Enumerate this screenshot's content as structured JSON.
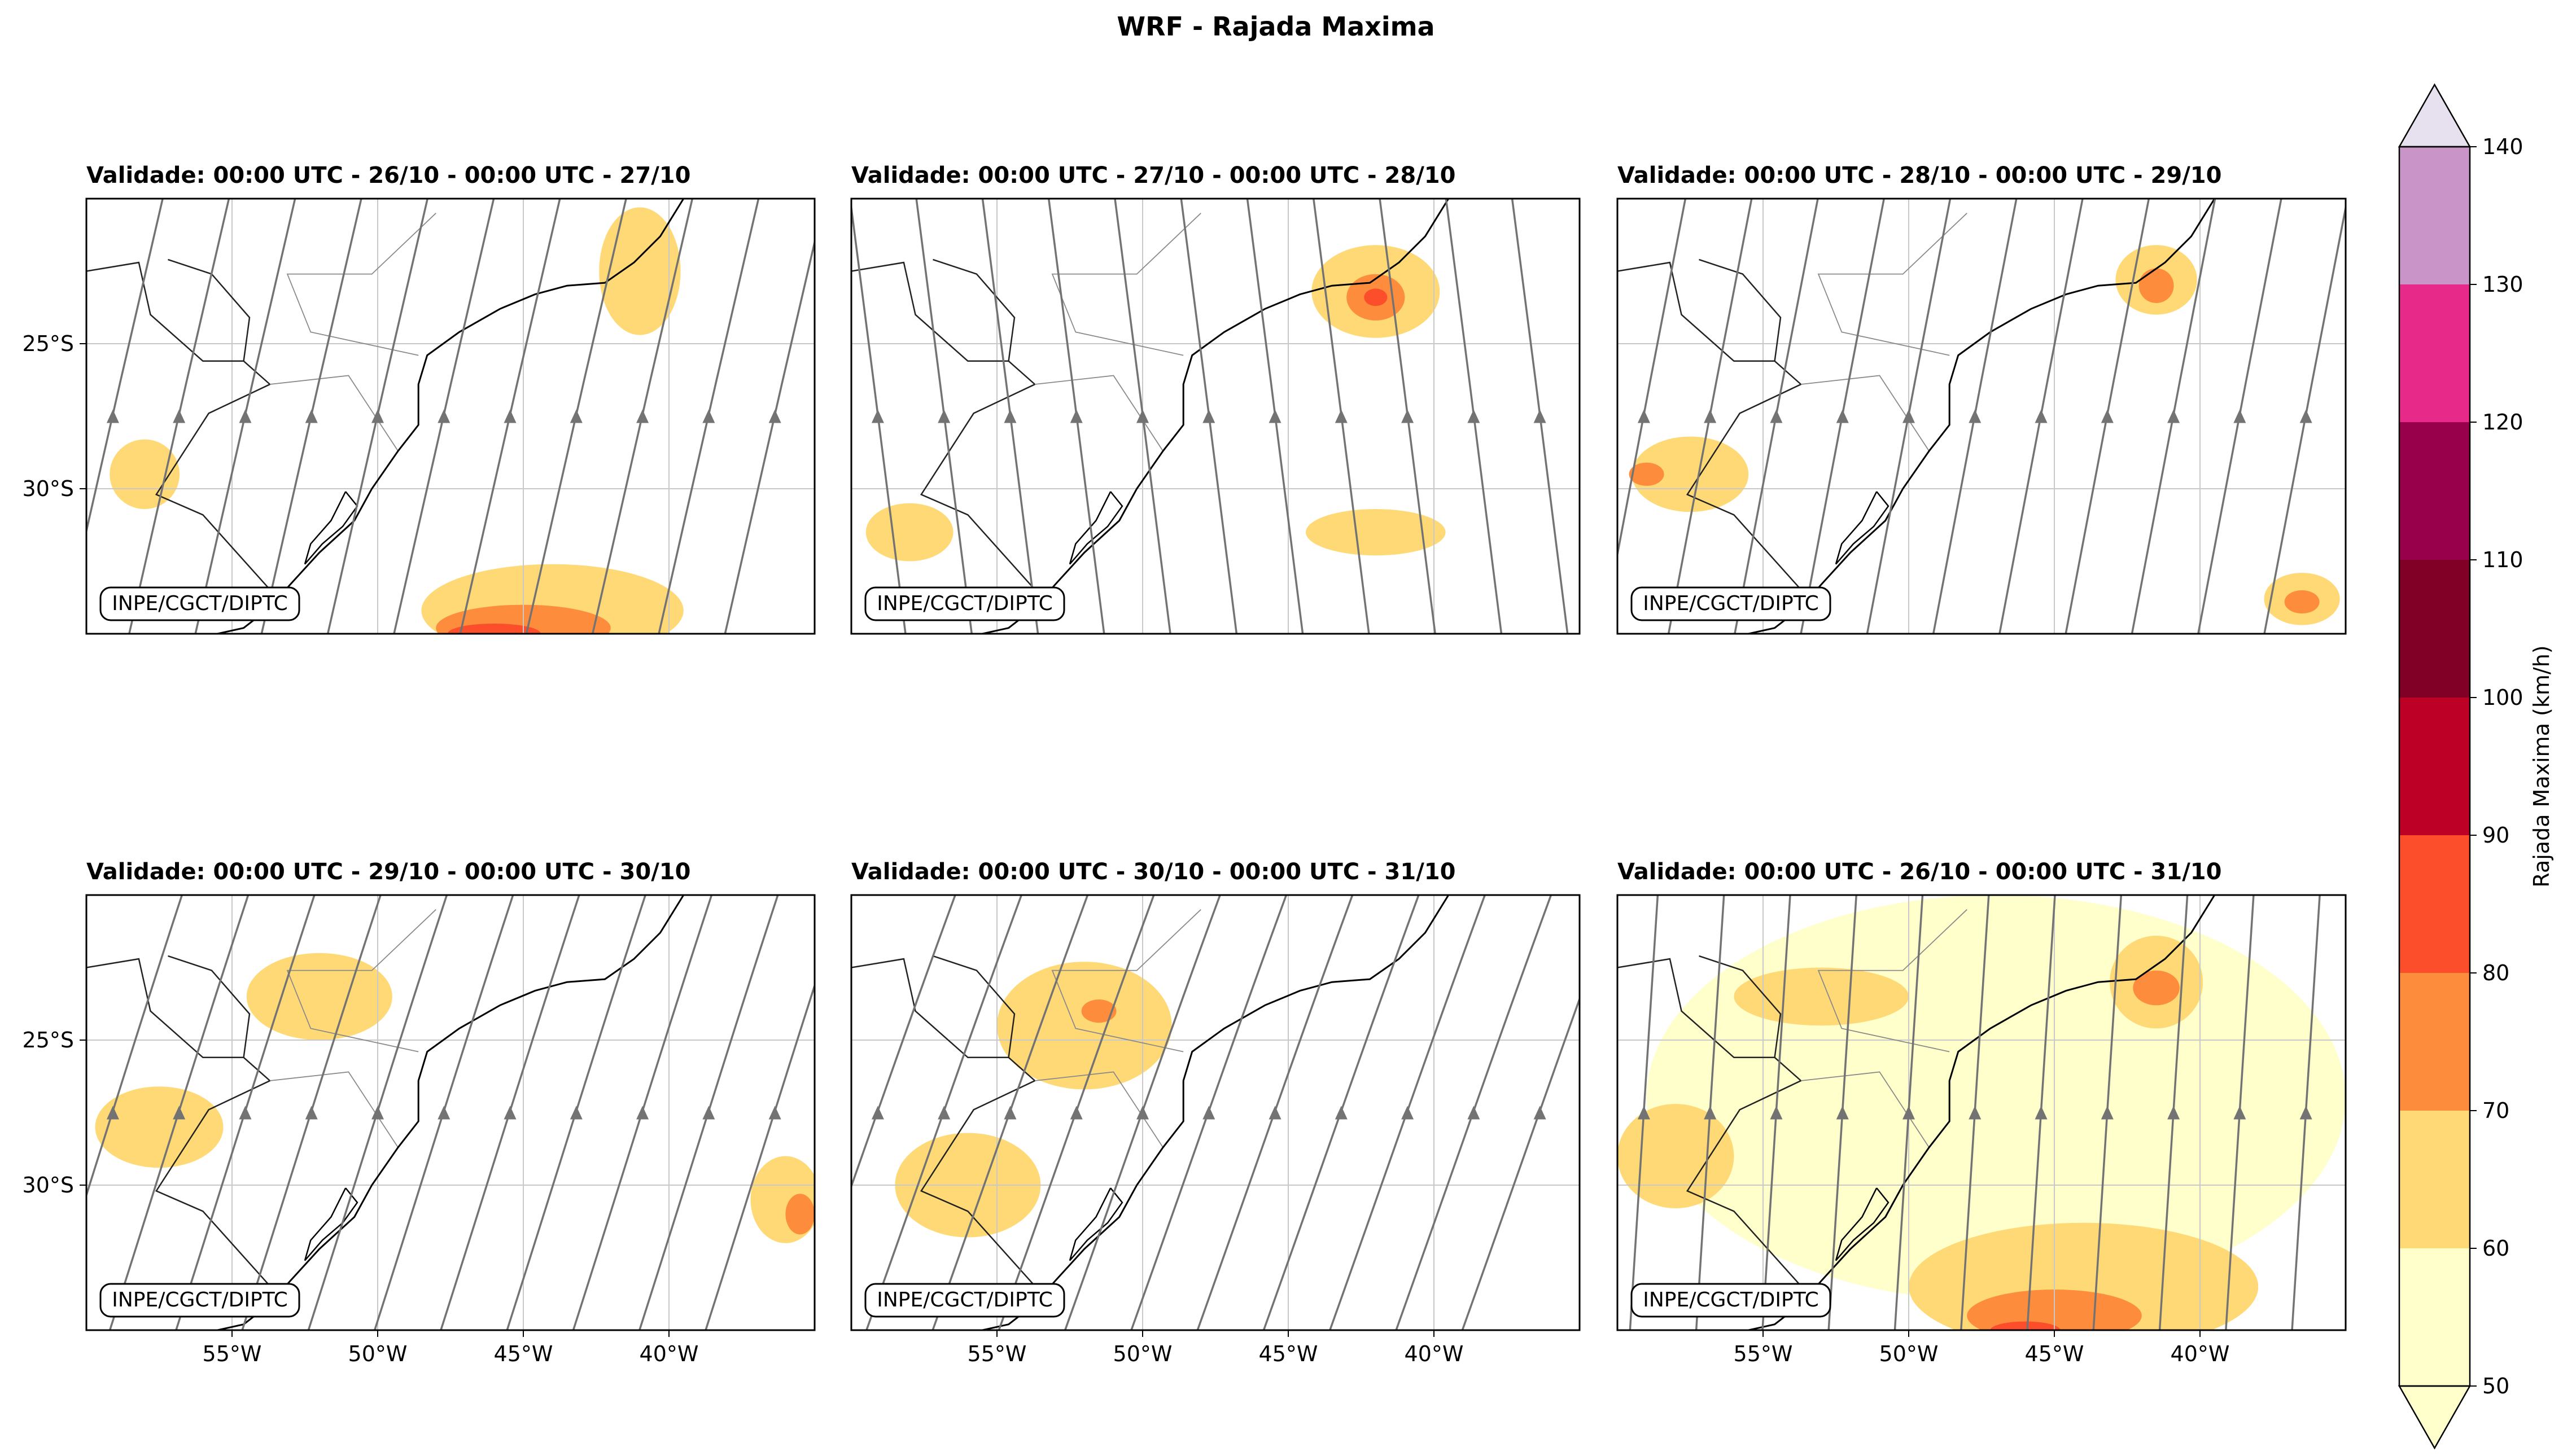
{
  "figure": {
    "title": "WRF - Rajada Maxima",
    "credit_label": "INPE/CGCT/DIPTC"
  },
  "panels": [
    {
      "title": "Validade: 00:00 UTC - 26/10 - 00:00 UTC - 27/10"
    },
    {
      "title": "Validade: 00:00 UTC - 27/10 - 00:00 UTC - 28/10"
    },
    {
      "title": "Validade: 00:00 UTC - 28/10 - 00:00 UTC - 29/10"
    },
    {
      "title": "Validade: 00:00 UTC - 29/10 - 00:00 UTC - 30/10"
    },
    {
      "title": "Validade: 00:00 UTC - 30/10 - 00:00 UTC - 31/10"
    },
    {
      "title": "Validade: 00:00 UTC - 26/10 - 00:00 UTC - 31/10"
    }
  ],
  "chart_data": {
    "type": "heatmap",
    "title": "WRF - Rajada Maxima",
    "map_extent": {
      "lon": [
        -60,
        -35
      ],
      "lat": [
        -35,
        -20
      ]
    },
    "lat_ticks": [
      "25°S",
      "30°S"
    ],
    "lat_tick_values": [
      -25,
      -30
    ],
    "lon_ticks": [
      "55°W",
      "50°W",
      "45°W",
      "40°W"
    ],
    "lon_tick_values": [
      -55,
      -50,
      -45,
      -40
    ],
    "grid": true,
    "overlay": "streamlines",
    "colorbar": {
      "label": "Rajada Maxima (km/h)",
      "levels": [
        50,
        60,
        70,
        80,
        90,
        100,
        110,
        120,
        130,
        140
      ],
      "tick_labels": [
        "50",
        "60",
        "70",
        "80",
        "90",
        "100",
        "110",
        "120",
        "130",
        "140"
      ],
      "colors": [
        "#ffffcc",
        "#fed976",
        "#fd8d3c",
        "#fc4e2a",
        "#bd0026",
        "#800026",
        "#99004c",
        "#e7298a",
        "#c994c7",
        "#e7e1ef"
      ],
      "extend": "both"
    },
    "fields": [
      {
        "panel": 1,
        "areas": [
          {
            "lon": -44,
            "lat": -34.2,
            "rx": 4.5,
            "ry": 1.6,
            "level": 60
          },
          {
            "lon": -45,
            "lat": -34.8,
            "rx": 3.0,
            "ry": 0.8,
            "level": 70
          },
          {
            "lon": -46,
            "lat": -35.0,
            "rx": 1.6,
            "ry": 0.35,
            "level": 80
          },
          {
            "lon": -41,
            "lat": -22.5,
            "rx": 1.4,
            "ry": 2.2,
            "level": 60
          },
          {
            "lon": -58,
            "lat": -29.5,
            "rx": 1.2,
            "ry": 1.2,
            "level": 60
          }
        ]
      },
      {
        "panel": 2,
        "areas": [
          {
            "lon": -42,
            "lat": -23.2,
            "rx": 2.2,
            "ry": 1.6,
            "level": 60
          },
          {
            "lon": -42,
            "lat": -23.4,
            "rx": 1.0,
            "ry": 0.8,
            "level": 70
          },
          {
            "lon": -42,
            "lat": -23.4,
            "rx": 0.4,
            "ry": 0.3,
            "level": 80
          },
          {
            "lon": -42,
            "lat": -31.5,
            "rx": 2.4,
            "ry": 0.8,
            "level": 60
          },
          {
            "lon": -58,
            "lat": -31.5,
            "rx": 1.5,
            "ry": 1.0,
            "level": 60
          }
        ]
      },
      {
        "panel": 3,
        "areas": [
          {
            "lon": -41.5,
            "lat": -22.8,
            "rx": 1.4,
            "ry": 1.2,
            "level": 60
          },
          {
            "lon": -41.5,
            "lat": -23.0,
            "rx": 0.6,
            "ry": 0.6,
            "level": 70
          },
          {
            "lon": -57.5,
            "lat": -29.5,
            "rx": 2.0,
            "ry": 1.3,
            "level": 60
          },
          {
            "lon": -59,
            "lat": -29.5,
            "rx": 0.6,
            "ry": 0.4,
            "level": 70
          },
          {
            "lon": -36.5,
            "lat": -33.8,
            "rx": 1.3,
            "ry": 0.9,
            "level": 60
          },
          {
            "lon": -36.5,
            "lat": -33.9,
            "rx": 0.6,
            "ry": 0.4,
            "level": 70
          }
        ]
      },
      {
        "panel": 4,
        "areas": [
          {
            "lon": -52,
            "lat": -23.5,
            "rx": 2.5,
            "ry": 1.5,
            "level": 60
          },
          {
            "lon": -57.5,
            "lat": -28.0,
            "rx": 2.2,
            "ry": 1.4,
            "level": 60
          },
          {
            "lon": -36,
            "lat": -30.5,
            "rx": 1.2,
            "ry": 1.5,
            "level": 60
          },
          {
            "lon": -35.5,
            "lat": -31.0,
            "rx": 0.5,
            "ry": 0.7,
            "level": 70
          }
        ]
      },
      {
        "panel": 5,
        "areas": [
          {
            "lon": -52,
            "lat": -24.5,
            "rx": 3.0,
            "ry": 2.2,
            "level": 60
          },
          {
            "lon": -51.5,
            "lat": -24.0,
            "rx": 0.6,
            "ry": 0.4,
            "level": 70
          },
          {
            "lon": -56,
            "lat": -30.0,
            "rx": 2.5,
            "ry": 1.8,
            "level": 60
          }
        ]
      },
      {
        "panel": 6,
        "areas": [
          {
            "lon": -47,
            "lat": -27.0,
            "rx": 12.0,
            "ry": 7.0,
            "level": 50
          },
          {
            "lon": -44,
            "lat": -33.5,
            "rx": 6.0,
            "ry": 2.2,
            "level": 60
          },
          {
            "lon": -45,
            "lat": -34.5,
            "rx": 3.0,
            "ry": 0.9,
            "level": 70
          },
          {
            "lon": -46,
            "lat": -35.0,
            "rx": 1.2,
            "ry": 0.3,
            "level": 80
          },
          {
            "lon": -41.5,
            "lat": -23.0,
            "rx": 1.6,
            "ry": 1.6,
            "level": 60
          },
          {
            "lon": -41.5,
            "lat": -23.2,
            "rx": 0.8,
            "ry": 0.6,
            "level": 70
          },
          {
            "lon": -58,
            "lat": -29.0,
            "rx": 2.0,
            "ry": 1.8,
            "level": 60
          },
          {
            "lon": -53,
            "lat": -23.5,
            "rx": 3.0,
            "ry": 1.0,
            "level": 60
          }
        ]
      }
    ]
  }
}
